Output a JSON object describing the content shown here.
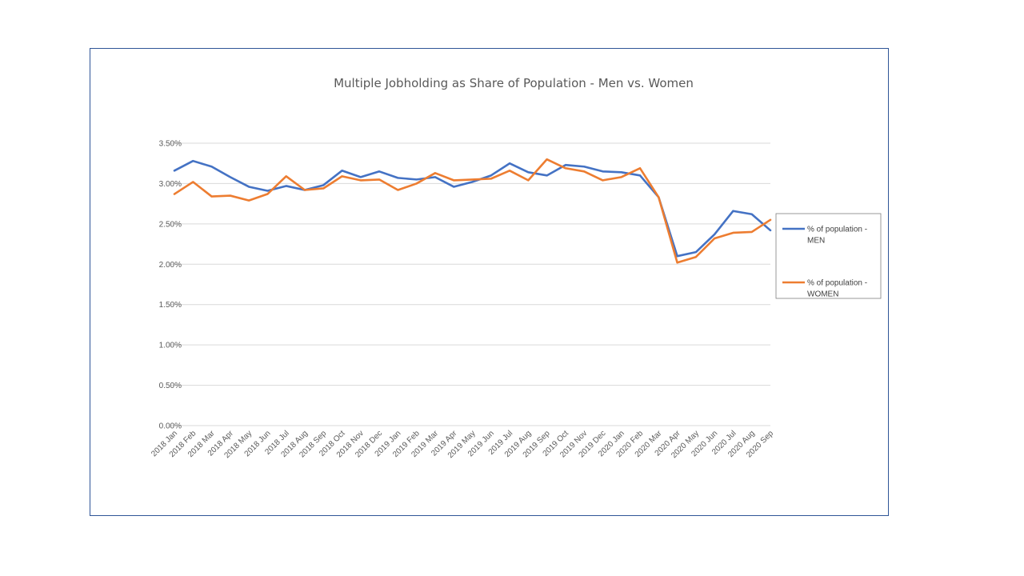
{
  "chart_data": {
    "type": "line",
    "title": "Multiple Jobholding as Share of Population - Men vs. Women",
    "xlabel": "",
    "ylabel": "",
    "ylim": [
      0,
      0.035
    ],
    "yticks": [
      "0.00%",
      "0.50%",
      "1.00%",
      "1.50%",
      "2.00%",
      "2.50%",
      "3.00%",
      "3.50%"
    ],
    "grid": true,
    "legend_position": "right",
    "categories": [
      "2018 Jan",
      "2018 Feb",
      "2018 Mar",
      "2018 Apr",
      "2018 May",
      "2018 Jun",
      "2018 Jul",
      "2018 Aug",
      "2018 Sep",
      "2018 Oct",
      "2018 Nov",
      "2018 Dec",
      "2019 Jan",
      "2019 Feb",
      "2019 Mar",
      "2019 Apr",
      "2019 May",
      "2019 Jun",
      "2019 Jul",
      "2019 Aug",
      "2019 Sep",
      "2019 Oct",
      "2019 Nov",
      "2019 Dec",
      "2020 Jan",
      "2020 Feb",
      "2020 Mar",
      "2020 Apr",
      "2020 May",
      "2020 Jun",
      "2020 Jul",
      "2020 Aug",
      "2020 Sep"
    ],
    "series": [
      {
        "name": "% of population - MEN",
        "legend_lines": [
          "% of population -",
          "MEN"
        ],
        "color": "#4472c4",
        "values": [
          0.0316,
          0.0328,
          0.0321,
          0.0308,
          0.0296,
          0.0291,
          0.0297,
          0.0292,
          0.0298,
          0.0316,
          0.0308,
          0.0315,
          0.0307,
          0.0305,
          0.0308,
          0.0296,
          0.0302,
          0.031,
          0.0325,
          0.0314,
          0.031,
          0.0323,
          0.0321,
          0.0315,
          0.0314,
          0.031,
          0.0283,
          0.021,
          0.0215,
          0.0237,
          0.0266,
          0.0262,
          0.0242
        ]
      },
      {
        "name": "% of population - WOMEN",
        "legend_lines": [
          "% of population -",
          "WOMEN"
        ],
        "color": "#ed7d31",
        "values": [
          0.0287,
          0.0302,
          0.0284,
          0.0285,
          0.0279,
          0.0287,
          0.0309,
          0.0292,
          0.0294,
          0.0309,
          0.0304,
          0.0305,
          0.0292,
          0.03,
          0.0313,
          0.0304,
          0.0305,
          0.0306,
          0.0316,
          0.0304,
          0.033,
          0.0319,
          0.0315,
          0.0304,
          0.0308,
          0.0319,
          0.0283,
          0.0202,
          0.0209,
          0.0232,
          0.0239,
          0.024,
          0.0255
        ]
      }
    ]
  }
}
